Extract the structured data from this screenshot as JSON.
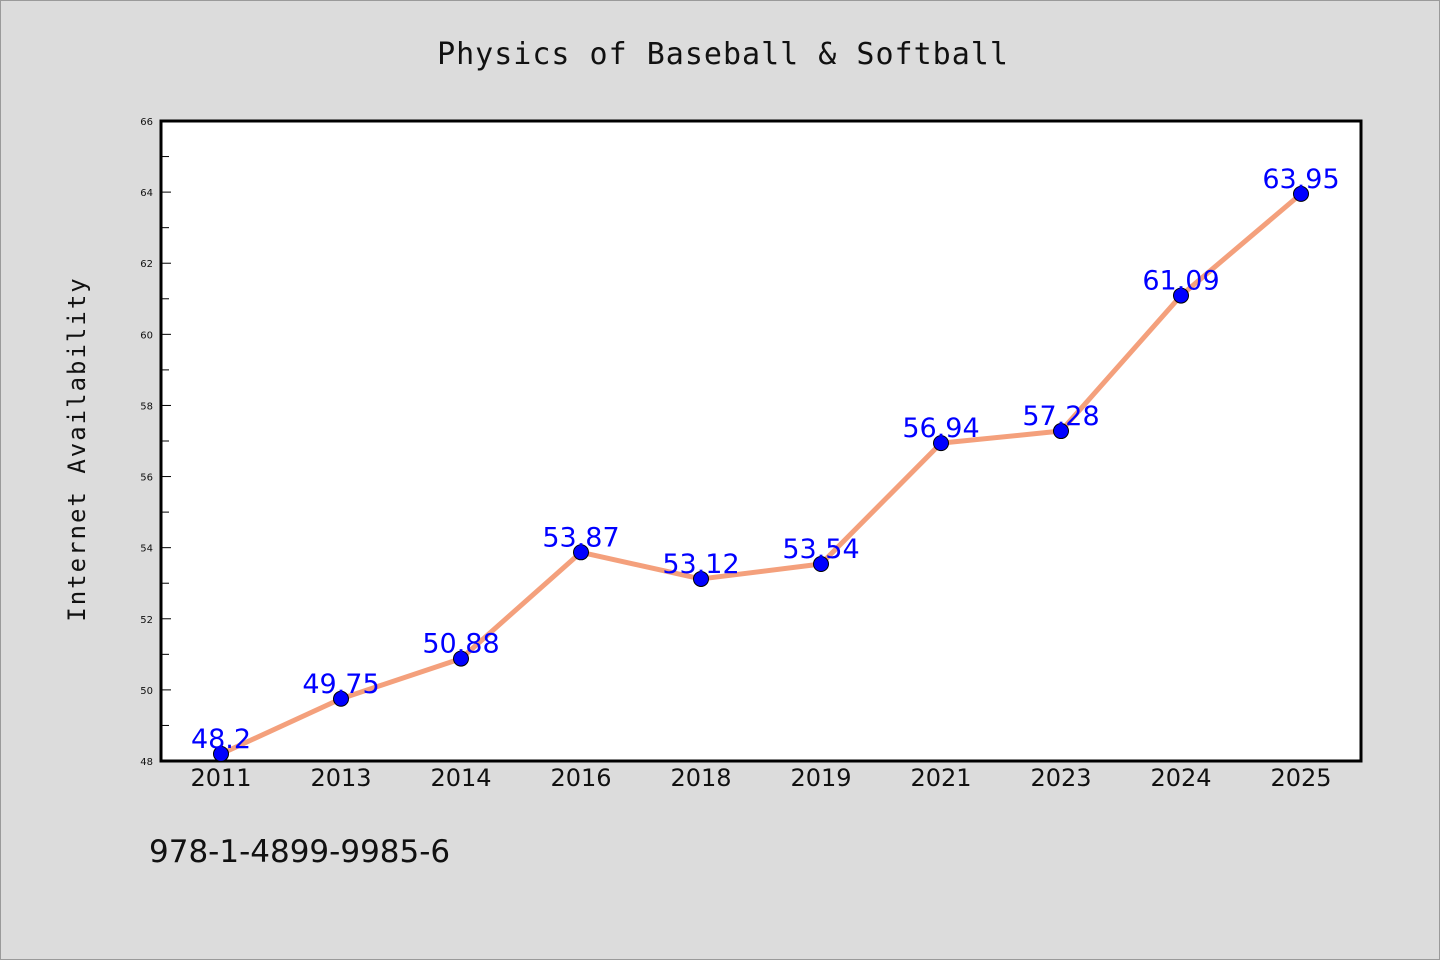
{
  "chart_data": {
    "type": "line",
    "title": "Physics of Baseball & Softball",
    "xlabel": "",
    "ylabel": "Internet Availability",
    "categories": [
      "2011",
      "2013",
      "2014",
      "2016",
      "2018",
      "2019",
      "2021",
      "2023",
      "2024",
      "2025"
    ],
    "series": [
      {
        "values": [
          48.2,
          49.75,
          50.88,
          53.87,
          53.12,
          53.54,
          56.94,
          57.28,
          61.09,
          63.95
        ],
        "labels": [
          "48.2",
          "49.75",
          "50.88",
          "53.87",
          "53.12",
          "53.54",
          "56.94",
          "57.28",
          "61.09",
          "63.95"
        ]
      }
    ],
    "ylim": [
      48,
      66
    ],
    "yticks": [
      "48",
      "50",
      "52",
      "54",
      "56",
      "58",
      "60",
      "62",
      "64",
      "66"
    ],
    "grid": false,
    "legend": "none",
    "colors": {
      "line": "#f4a07c",
      "marker": "#0000ff",
      "data_label": "#0000ff",
      "background": "#dcdcdc",
      "plot_area": "#ffffff"
    }
  },
  "footer": {
    "isbn": "978-1-4899-9985-6"
  }
}
